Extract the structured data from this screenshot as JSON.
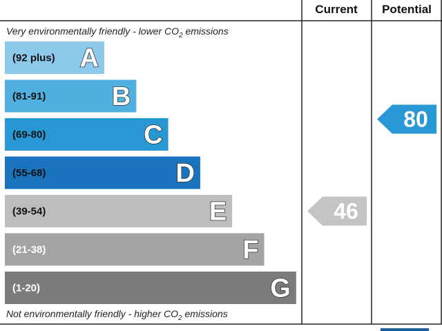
{
  "chart_data": {
    "type": "bar",
    "title": "",
    "columns": [
      "Current",
      "Potential"
    ],
    "top_note": "Very environmentally friendly - lower CO",
    "bottom_note": "Not environmentally friendly - higher CO",
    "note_subscript": "2",
    "note_suffix": " emissions",
    "bands": [
      {
        "range": "(92 plus)",
        "letter": "A",
        "color": "#8dc9ea",
        "range_color": "#111111",
        "min": 92,
        "max": 100
      },
      {
        "range": "(81-91)",
        "letter": "B",
        "color": "#4fb0e0",
        "range_color": "#111111",
        "min": 81,
        "max": 91
      },
      {
        "range": "(69-80)",
        "letter": "C",
        "color": "#2898d5",
        "range_color": "#111111",
        "min": 69,
        "max": 80
      },
      {
        "range": "(55-68)",
        "letter": "D",
        "color": "#1a74bd",
        "range_color": "#111111",
        "min": 55,
        "max": 68
      },
      {
        "range": "(39-54)",
        "letter": "E",
        "color": "#bdbdbd",
        "range_color": "#111111",
        "min": 39,
        "max": 54
      },
      {
        "range": "(21-38)",
        "letter": "F",
        "color": "#a4a4a4",
        "range_color": "#ffffff",
        "min": 21,
        "max": 38
      },
      {
        "range": "(1-20)",
        "letter": "G",
        "color": "#7b7b7b",
        "range_color": "#ffffff",
        "min": 1,
        "max": 20
      }
    ],
    "current": {
      "value": 46,
      "band": "E",
      "color": "#c4c4c4"
    },
    "potential": {
      "value": 80,
      "band": "C",
      "color": "#2898d5"
    }
  }
}
